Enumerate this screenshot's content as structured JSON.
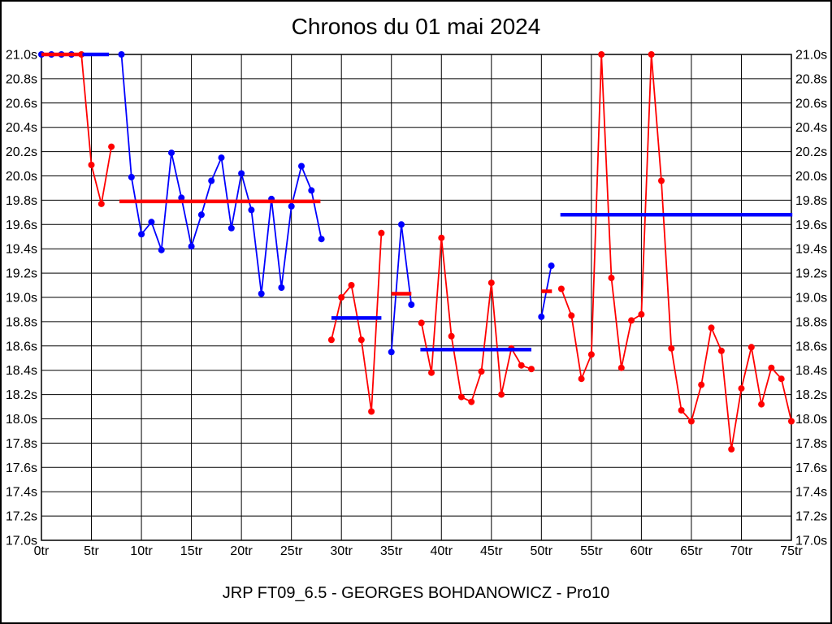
{
  "chart_data": {
    "type": "line",
    "title": "Chronos du 01 mai 2024",
    "footer": "JRP FT09_6.5 - GEORGES BOHDANOWICZ - Pro10",
    "colors": {
      "red": "#ff0000",
      "blue": "#0000ff",
      "grid": "#000000"
    },
    "x_axis": {
      "unit_suffix": "tr",
      "min": 0,
      "max": 75,
      "ticks": [
        0,
        5,
        10,
        15,
        20,
        25,
        30,
        35,
        40,
        45,
        50,
        55,
        60,
        65,
        70,
        75
      ],
      "labels": [
        "0tr",
        "5tr",
        "10tr",
        "15tr",
        "20tr",
        "25tr",
        "30tr",
        "35tr",
        "40tr",
        "45tr",
        "50tr",
        "55tr",
        "60tr",
        "65tr",
        "70tr",
        "75tr"
      ]
    },
    "y_axis": {
      "unit_suffix": "s",
      "min": 17.0,
      "max": 21.0,
      "ticks": [
        21.0,
        20.8,
        20.6,
        20.4,
        20.2,
        20.0,
        19.8,
        19.6,
        19.4,
        19.2,
        19.0,
        18.8,
        18.6,
        18.4,
        18.2,
        18.0,
        17.8,
        17.6,
        17.4,
        17.2,
        17.0
      ],
      "labels": [
        "21.0s",
        "20.8s",
        "20.6s",
        "20.4s",
        "20.2s",
        "20.0s",
        "19.8s",
        "19.6s",
        "19.4s",
        "19.2s",
        "19.0s",
        "18.8s",
        "18.6s",
        "18.4s",
        "18.2s",
        "18.0s",
        "17.8s",
        "17.6s",
        "17.4s",
        "17.2s",
        "17.0s"
      ]
    },
    "series": [
      {
        "name": "blue-series",
        "color": "#0000ff",
        "stints": [
          [
            [
              0,
              21.0
            ],
            [
              1,
              21.0
            ],
            [
              2,
              21.0
            ],
            [
              3,
              21.0
            ]
          ],
          [
            [
              8,
              21.0
            ],
            [
              9,
              19.99
            ],
            [
              10,
              19.52
            ],
            [
              11,
              19.62
            ],
            [
              12,
              19.39
            ],
            [
              13,
              20.19
            ],
            [
              14,
              19.82
            ],
            [
              15,
              19.42
            ],
            [
              16,
              19.68
            ],
            [
              17,
              19.96
            ],
            [
              18,
              20.15
            ],
            [
              19,
              19.57
            ],
            [
              20,
              20.02
            ],
            [
              21,
              19.72
            ],
            [
              22,
              19.03
            ],
            [
              23,
              19.81
            ],
            [
              24,
              19.08
            ],
            [
              25,
              19.75
            ],
            [
              26,
              20.08
            ],
            [
              27,
              19.88
            ],
            [
              28,
              19.48
            ]
          ],
          [
            [
              35,
              18.55
            ],
            [
              36,
              19.6
            ],
            [
              37,
              18.94
            ]
          ],
          [
            [
              50,
              18.84
            ],
            [
              51,
              19.26
            ]
          ]
        ]
      },
      {
        "name": "red-series",
        "color": "#ff0000",
        "stints": [
          [
            [
              4,
              21.0
            ],
            [
              5,
              20.09
            ],
            [
              6,
              19.77
            ],
            [
              7,
              20.24
            ]
          ],
          [
            [
              29,
              18.65
            ],
            [
              30,
              19.0
            ],
            [
              31,
              19.1
            ],
            [
              32,
              18.65
            ],
            [
              33,
              18.06
            ],
            [
              34,
              19.53
            ]
          ],
          [
            [
              38,
              18.79
            ],
            [
              39,
              18.38
            ],
            [
              40,
              19.49
            ],
            [
              41,
              18.68
            ],
            [
              42,
              18.18
            ],
            [
              43,
              18.14
            ],
            [
              44,
              18.39
            ],
            [
              45,
              19.12
            ],
            [
              46,
              18.2
            ],
            [
              47,
              18.58
            ],
            [
              48,
              18.44
            ],
            [
              49,
              18.41
            ]
          ],
          [
            [
              52,
              19.07
            ],
            [
              53,
              18.85
            ],
            [
              54,
              18.33
            ],
            [
              55,
              18.53
            ],
            [
              56,
              21.0
            ],
            [
              57,
              19.16
            ],
            [
              58,
              18.42
            ],
            [
              59,
              18.81
            ],
            [
              60,
              18.86
            ],
            [
              61,
              21.0
            ],
            [
              62,
              19.96
            ],
            [
              63,
              18.58
            ],
            [
              64,
              18.07
            ],
            [
              65,
              17.98
            ],
            [
              66,
              18.28
            ],
            [
              67,
              18.75
            ],
            [
              68,
              18.56
            ],
            [
              69,
              17.75
            ],
            [
              70,
              18.25
            ],
            [
              71,
              18.59
            ],
            [
              72,
              18.12
            ],
            [
              73,
              18.42
            ],
            [
              74,
              18.33
            ],
            [
              75,
              17.98
            ]
          ]
        ]
      }
    ],
    "stint_average_lines": [
      {
        "color": "red",
        "value": 21.0,
        "lap_start": 0.0,
        "lap_end": 4.0
      },
      {
        "color": "blue",
        "value": 21.0,
        "lap_start": 4.1,
        "lap_end": 6.75
      },
      {
        "color": "red",
        "value": 19.79,
        "lap_start": 7.8,
        "lap_end": 27.9
      },
      {
        "color": "blue",
        "value": 18.83,
        "lap_start": 29.0,
        "lap_end": 34.0
      },
      {
        "color": "red",
        "value": 19.03,
        "lap_start": 35.0,
        "lap_end": 37.0
      },
      {
        "color": "blue",
        "value": 18.57,
        "lap_start": 37.9,
        "lap_end": 49.0
      },
      {
        "color": "red",
        "value": 19.05,
        "lap_start": 50.0,
        "lap_end": 51.05
      },
      {
        "color": "blue",
        "value": 19.68,
        "lap_start": 51.9,
        "lap_end": 75.1
      }
    ]
  }
}
